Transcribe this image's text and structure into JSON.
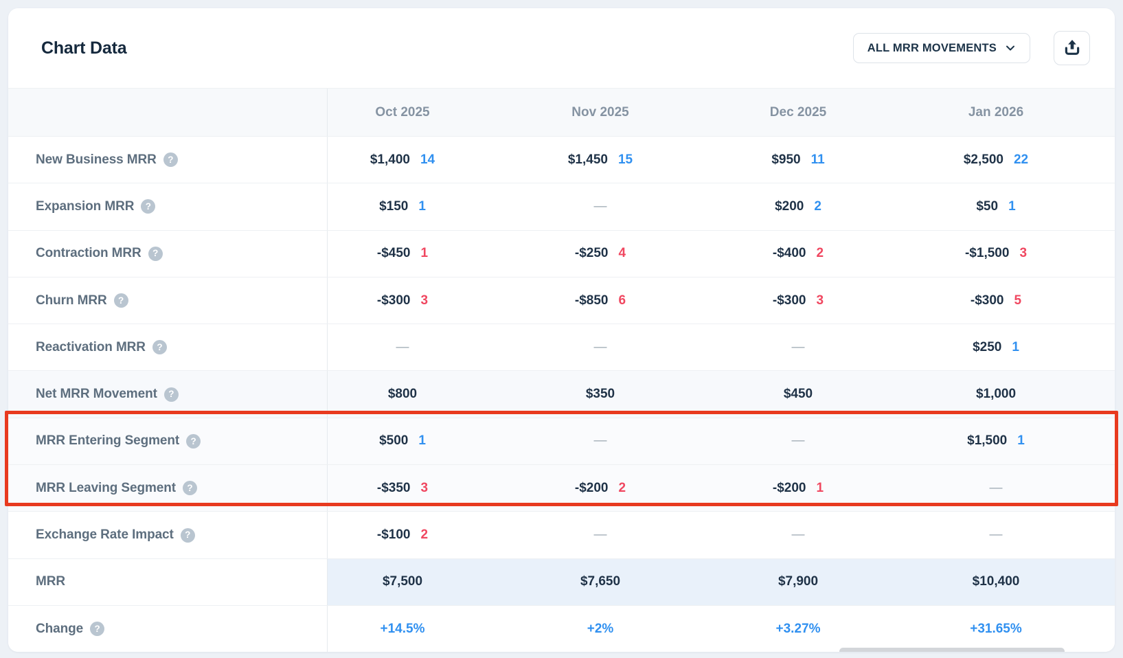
{
  "card": {
    "title": "Chart Data",
    "dropdown_label": "ALL MRR MOVEMENTS",
    "export_icon": "upload-icon"
  },
  "colors": {
    "positive_count": "#3090f0",
    "negative_count": "#f04760",
    "change_value": "#3090f0",
    "annotation_border": "#e83a1f",
    "mrr_row_highlight": "#e9f1fa"
  },
  "table": {
    "columns": [
      "Oct 2025",
      "Nov 2025",
      "Dec 2025",
      "Jan 2026"
    ],
    "rows": [
      {
        "label": "New Business MRR",
        "help": true,
        "cells": [
          {
            "amount": "$1,400",
            "count": "14",
            "tone": "pos"
          },
          {
            "amount": "$1,450",
            "count": "15",
            "tone": "pos"
          },
          {
            "amount": "$950",
            "count": "11",
            "tone": "pos"
          },
          {
            "amount": "$2,500",
            "count": "22",
            "tone": "pos"
          }
        ]
      },
      {
        "label": "Expansion MRR",
        "help": true,
        "cells": [
          {
            "amount": "$150",
            "count": "1",
            "tone": "pos"
          },
          {
            "amount": "—",
            "dash": true
          },
          {
            "amount": "$200",
            "count": "2",
            "tone": "pos"
          },
          {
            "amount": "$50",
            "count": "1",
            "tone": "pos"
          }
        ]
      },
      {
        "label": "Contraction MRR",
        "help": true,
        "cells": [
          {
            "amount": "-$450",
            "count": "1",
            "tone": "neg"
          },
          {
            "amount": "-$250",
            "count": "4",
            "tone": "neg"
          },
          {
            "amount": "-$400",
            "count": "2",
            "tone": "neg"
          },
          {
            "amount": "-$1,500",
            "count": "3",
            "tone": "neg"
          }
        ]
      },
      {
        "label": "Churn MRR",
        "help": true,
        "cells": [
          {
            "amount": "-$300",
            "count": "3",
            "tone": "neg"
          },
          {
            "amount": "-$850",
            "count": "6",
            "tone": "neg"
          },
          {
            "amount": "-$300",
            "count": "3",
            "tone": "neg"
          },
          {
            "amount": "-$300",
            "count": "5",
            "tone": "neg"
          }
        ]
      },
      {
        "label": "Reactivation MRR",
        "help": true,
        "cells": [
          {
            "amount": "—",
            "dash": true
          },
          {
            "amount": "—",
            "dash": true
          },
          {
            "amount": "—",
            "dash": true
          },
          {
            "amount": "$250",
            "count": "1",
            "tone": "pos"
          }
        ]
      },
      {
        "label": "Net MRR Movement",
        "help": true,
        "tint": true,
        "cells": [
          {
            "amount": "$800"
          },
          {
            "amount": "$350"
          },
          {
            "amount": "$450"
          },
          {
            "amount": "$1,000"
          }
        ]
      },
      {
        "label": "MRR Entering Segment",
        "help": true,
        "boxed": true,
        "cells": [
          {
            "amount": "$500",
            "count": "1",
            "tone": "pos"
          },
          {
            "amount": "—",
            "dash": true
          },
          {
            "amount": "—",
            "dash": true
          },
          {
            "amount": "$1,500",
            "count": "1",
            "tone": "pos"
          }
        ]
      },
      {
        "label": "MRR Leaving Segment",
        "help": true,
        "boxed": true,
        "cells": [
          {
            "amount": "-$350",
            "count": "3",
            "tone": "neg"
          },
          {
            "amount": "-$200",
            "count": "2",
            "tone": "neg"
          },
          {
            "amount": "-$200",
            "count": "1",
            "tone": "neg"
          },
          {
            "amount": "—",
            "dash": true
          }
        ]
      },
      {
        "label": "Exchange Rate Impact",
        "help": true,
        "cells": [
          {
            "amount": "-$100",
            "count": "2",
            "tone": "neg"
          },
          {
            "amount": "—",
            "dash": true
          },
          {
            "amount": "—",
            "dash": true
          },
          {
            "amount": "—",
            "dash": true
          }
        ]
      },
      {
        "label": "MRR",
        "help": false,
        "mrr_highlight": true,
        "cells": [
          {
            "amount": "$7,500"
          },
          {
            "amount": "$7,650"
          },
          {
            "amount": "$7,900"
          },
          {
            "amount": "$10,400"
          }
        ]
      },
      {
        "label": "Change",
        "help": true,
        "change": true,
        "cells": [
          {
            "amount": "+14.5%"
          },
          {
            "amount": "+2%"
          },
          {
            "amount": "+3.27%"
          },
          {
            "amount": "+31.65%"
          }
        ]
      }
    ]
  }
}
